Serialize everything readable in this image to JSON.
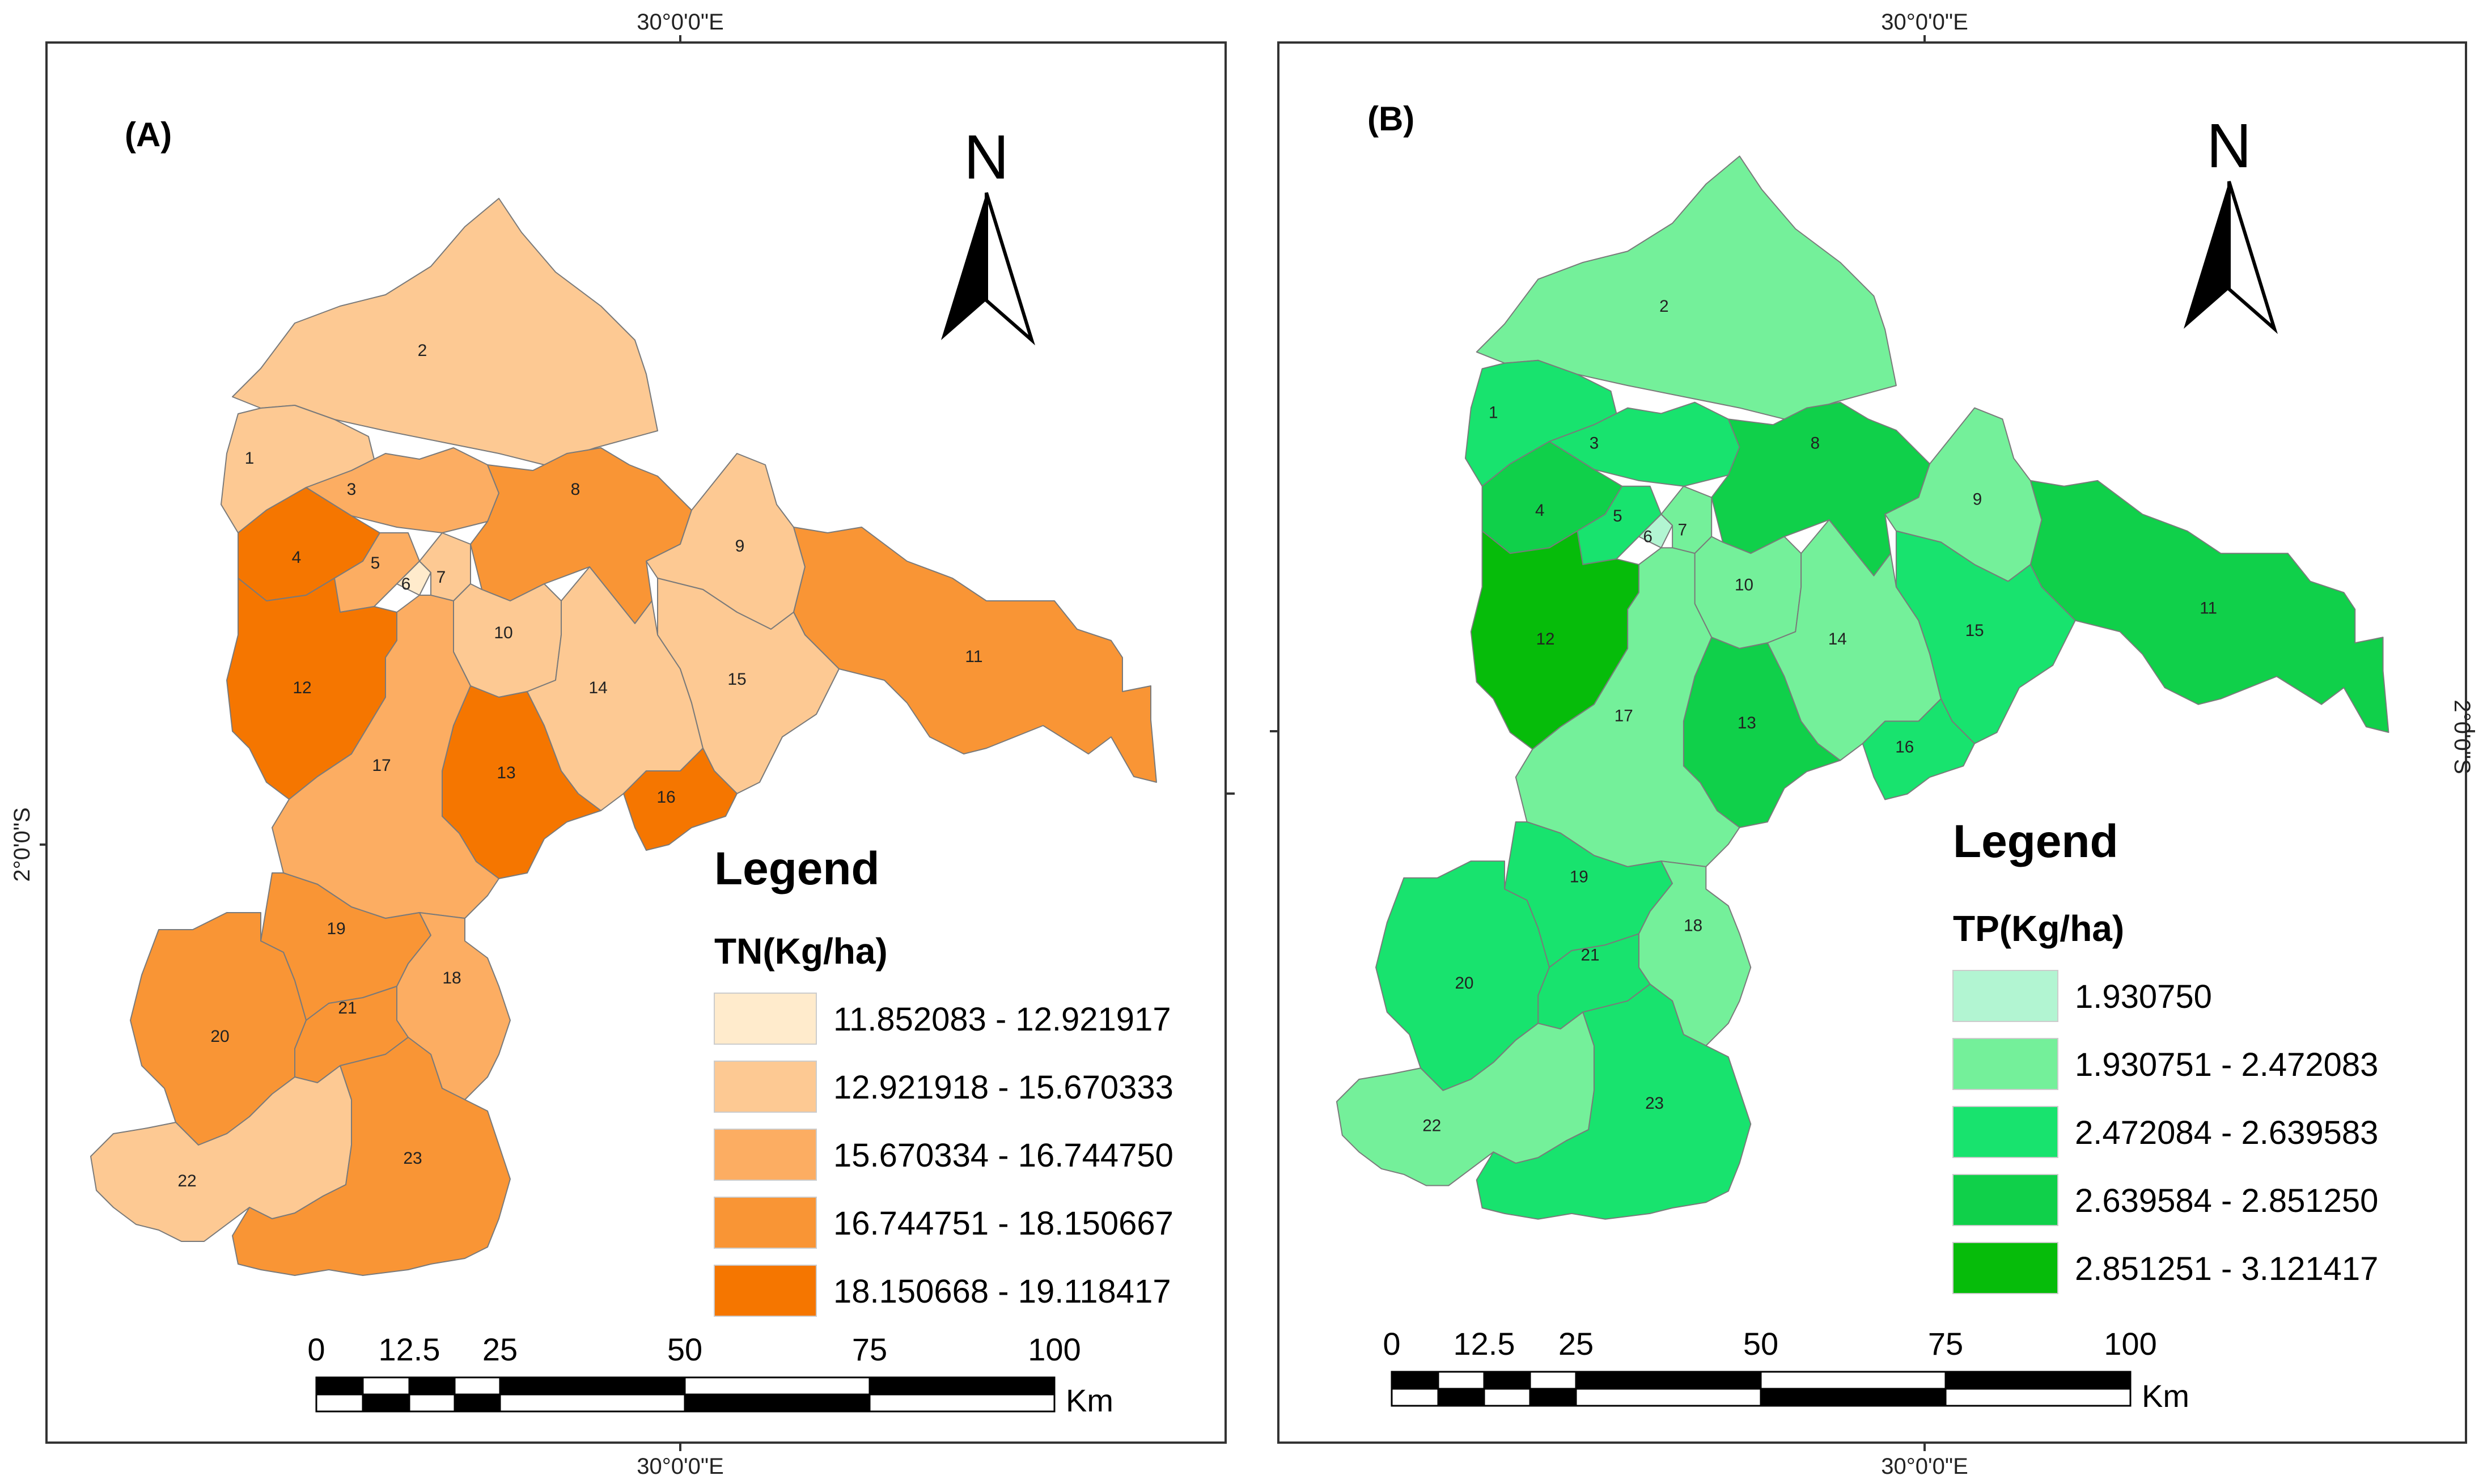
{
  "coordinates": {
    "top_a": "30°0'0\"E",
    "bottom_a": "30°0'0\"E",
    "left_a": "2°0'0\"S",
    "top_b": "30°0'0\"E",
    "bottom_b": "30°0'0\"E",
    "right_b": "2°0'0\"S"
  },
  "panels": [
    {
      "label": "(A)",
      "north": "N",
      "legend_title": "Legend",
      "variable": "TN(Kg/ha)",
      "classes": [
        {
          "label": "11.852083 - 12.921917",
          "color": "#FFEBCC"
        },
        {
          "label": "12.921918 - 15.670333",
          "color": "#FDC993"
        },
        {
          "label": "15.670334 - 16.744750",
          "color": "#FCAD62"
        },
        {
          "label": "16.744751 - 18.150667",
          "color": "#F99535"
        },
        {
          "label": "18.150668 - 19.118417",
          "color": "#F57600"
        }
      ],
      "region_class": {
        "1": 1,
        "2": 1,
        "3": 2,
        "4": 4,
        "5": 2,
        "6": 0,
        "7": 1,
        "8": 3,
        "9": 1,
        "10": 1,
        "11": 3,
        "12": 4,
        "13": 4,
        "14": 1,
        "15": 1,
        "16": 4,
        "17": 2,
        "18": 2,
        "19": 3,
        "20": 3,
        "21": 3,
        "22": 1,
        "23": 3
      },
      "scale_ticks": [
        "0",
        "12.5",
        "25",
        "50",
        "75",
        "100"
      ],
      "scale_unit": "Km"
    },
    {
      "label": "(B)",
      "north": "N",
      "legend_title": "Legend",
      "variable": "TP(Kg/ha)",
      "classes": [
        {
          "label": "1.930750",
          "color": "#B2F5D2"
        },
        {
          "label": "1.930751 - 2.472083",
          "color": "#74F09A"
        },
        {
          "label": "2.472084 - 2.639583",
          "color": "#18E36E"
        },
        {
          "label": "2.639584 - 2.851250",
          "color": "#10D04A"
        },
        {
          "label": "2.851251 - 3.121417",
          "color": "#06BC0A"
        }
      ],
      "region_class": {
        "1": 2,
        "2": 1,
        "3": 2,
        "4": 3,
        "5": 2,
        "6": 0,
        "7": 1,
        "8": 3,
        "9": 1,
        "10": 1,
        "11": 3,
        "12": 4,
        "13": 3,
        "14": 1,
        "15": 2,
        "16": 2,
        "17": 1,
        "18": 1,
        "19": 2,
        "20": 2,
        "21": 2,
        "22": 1,
        "23": 2
      },
      "scale_ticks": [
        "0",
        "12.5",
        "25",
        "50",
        "75",
        "100"
      ],
      "scale_unit": "Km"
    }
  ]
}
